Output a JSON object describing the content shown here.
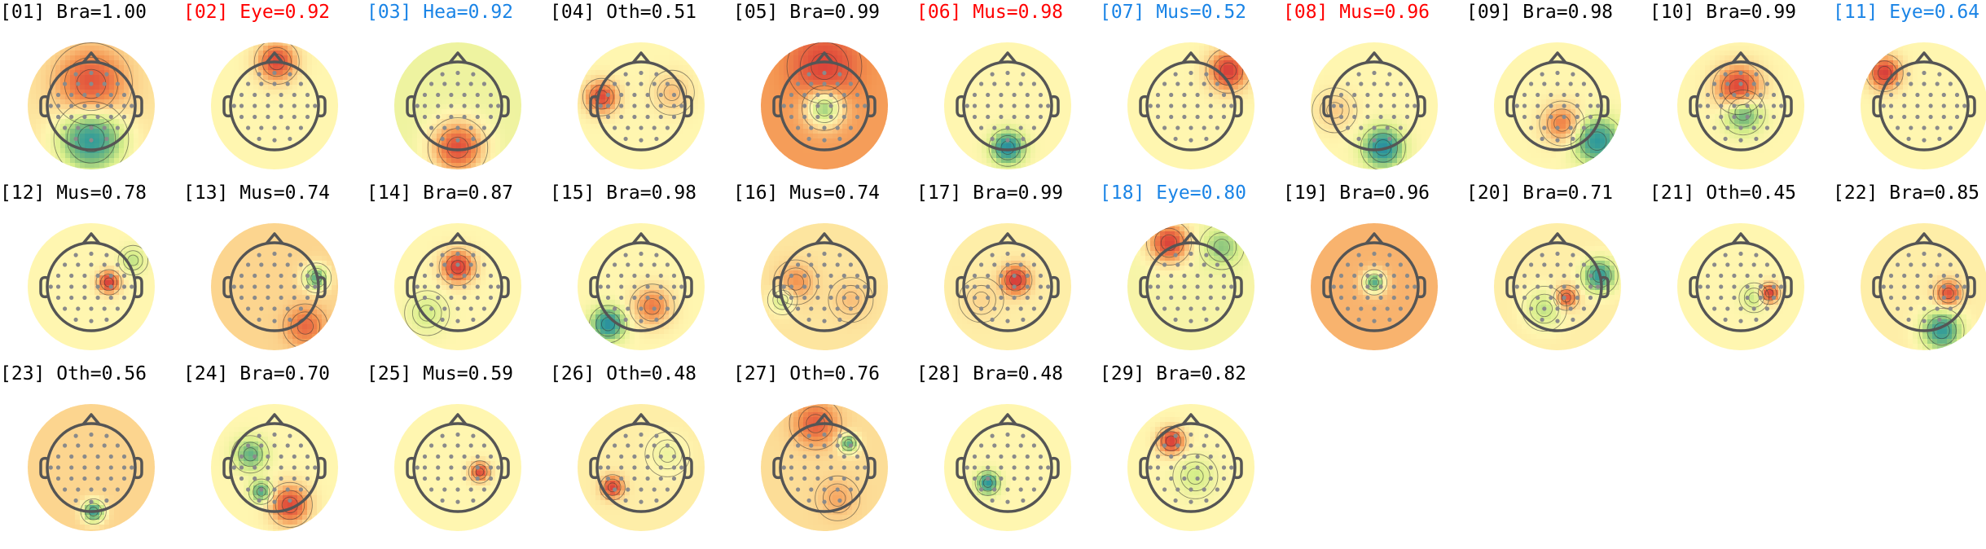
{
  "figure": {
    "colors": {
      "default": "#000000",
      "red": "#ff0000",
      "blue": "#1a84e6"
    },
    "colormap": [
      "#2166ac",
      "#2f9a9a",
      "#7fbf7b",
      "#d9ef8b",
      "#fff6b0",
      "#fbd08a",
      "#f4934f",
      "#e04c3a",
      "#b3123f"
    ],
    "components": [
      {
        "label": "[01] Bra=1.00",
        "color": "default"
      },
      {
        "label": "[02] Eye=0.92",
        "color": "red"
      },
      {
        "label": "[03] Hea=0.92",
        "color": "blue"
      },
      {
        "label": "[04] Oth=0.51",
        "color": "default"
      },
      {
        "label": "[05] Bra=0.99",
        "color": "default"
      },
      {
        "label": "[06] Mus=0.98",
        "color": "red"
      },
      {
        "label": "[07] Mus=0.52",
        "color": "blue"
      },
      {
        "label": "[08] Mus=0.96",
        "color": "red"
      },
      {
        "label": "[09] Bra=0.98",
        "color": "default"
      },
      {
        "label": "[10] Bra=0.99",
        "color": "default"
      },
      {
        "label": "[11] Eye=0.64",
        "color": "blue"
      },
      {
        "label": "[12] Mus=0.78",
        "color": "default"
      },
      {
        "label": "[13] Mus=0.74",
        "color": "default"
      },
      {
        "label": "[14] Bra=0.87",
        "color": "default"
      },
      {
        "label": "[15] Bra=0.98",
        "color": "default"
      },
      {
        "label": "[16] Mus=0.74",
        "color": "default"
      },
      {
        "label": "[17] Bra=0.99",
        "color": "default"
      },
      {
        "label": "[18] Eye=0.80",
        "color": "blue"
      },
      {
        "label": "[19] Bra=0.96",
        "color": "default"
      },
      {
        "label": "[20] Bra=0.71",
        "color": "default"
      },
      {
        "label": "[21] Oth=0.45",
        "color": "default"
      },
      {
        "label": "[22] Bra=0.85",
        "color": "default"
      },
      {
        "label": "[23] Oth=0.56",
        "color": "default"
      },
      {
        "label": "[24] Bra=0.70",
        "color": "default"
      },
      {
        "label": "[25] Mus=0.59",
        "color": "default"
      },
      {
        "label": "[26] Oth=0.48",
        "color": "default"
      },
      {
        "label": "[27] Oth=0.76",
        "color": "default"
      },
      {
        "label": "[28] Bra=0.48",
        "color": "default"
      },
      {
        "label": "[29] Bra=0.82",
        "color": "default"
      }
    ]
  }
}
